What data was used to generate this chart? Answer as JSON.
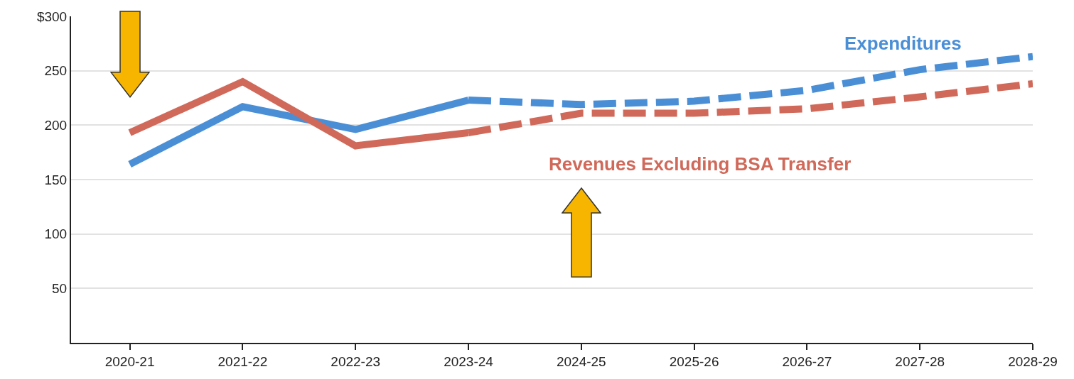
{
  "chart_data": {
    "type": "line",
    "categories": [
      "2020-21",
      "2021-22",
      "2022-23",
      "2023-24",
      "2024-25",
      "2025-26",
      "2026-27",
      "2027-28",
      "2028-29"
    ],
    "series": [
      {
        "name": "Expenditures",
        "color": "#4a8fd6",
        "line_style": "solid",
        "values": [
          164,
          217,
          196,
          223,
          null,
          null,
          null,
          null,
          null
        ]
      },
      {
        "color": "#4a8fd6",
        "line_style": "dashed",
        "values": [
          null,
          null,
          null,
          223,
          219,
          222,
          232,
          251,
          263
        ]
      },
      {
        "name": "Revenues Excluding BSA Transfer",
        "color": "#d0695a",
        "line_style": "solid",
        "values": [
          193,
          240,
          181,
          193,
          null,
          null,
          null,
          null,
          null
        ]
      },
      {
        "color": "#d0695a",
        "line_style": "dashed",
        "values": [
          null,
          null,
          null,
          193,
          211,
          211,
          215,
          226,
          238
        ]
      }
    ],
    "ylim": [
      0,
      300
    ],
    "yticks": [
      {
        "value": 300,
        "label": "$300"
      },
      250,
      200,
      150,
      100,
      50
    ],
    "grid": "y",
    "legend": false,
    "marker": "none"
  }
}
